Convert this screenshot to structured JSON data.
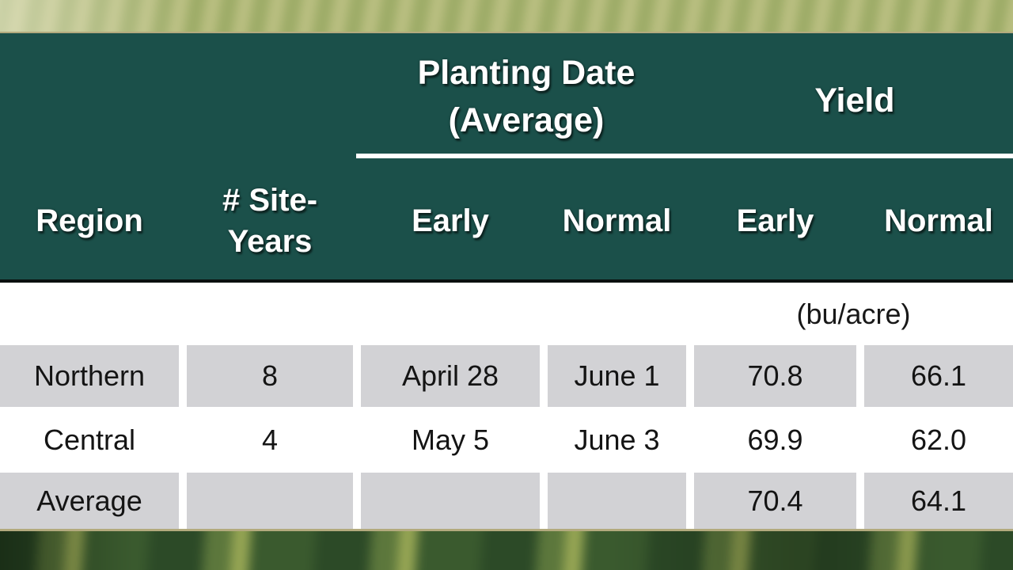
{
  "slide": {
    "group_headers": {
      "planting": {
        "line1": "Planting Date",
        "line2": "(Average)"
      },
      "yield": "Yield"
    },
    "columns": {
      "region": "Region",
      "site_years_line1": "# Site-",
      "site_years_line2": "Years",
      "planting_early": "Early",
      "planting_normal": "Normal",
      "yield_early": "Early",
      "yield_normal": "Normal"
    },
    "unit_label": "(bu/acre)",
    "rows": [
      {
        "cells": [
          "Northern",
          "8",
          "April 28",
          "June 1",
          "70.8",
          "66.1"
        ]
      },
      {
        "cells": [
          "Central",
          "4",
          "May 5",
          "June 3",
          "69.9",
          "62.0"
        ]
      },
      {
        "cells": [
          "Average",
          "",
          "",
          "",
          "70.4",
          "64.1"
        ]
      }
    ],
    "colors": {
      "header_green": "#1b504a",
      "header_bottom_line": "#0a100e",
      "row_shaded_gray": "#d2d2d5",
      "edge_tan": "#b3aa7e",
      "header_text": "#ffffff",
      "body_text": "#141414"
    }
  },
  "chart_data": {
    "type": "table",
    "column_groups": [
      {
        "label": "Planting Date (Average)",
        "columns": [
          "Early",
          "Normal"
        ]
      },
      {
        "label": "Yield",
        "unit": "bu/acre",
        "columns": [
          "Early",
          "Normal"
        ]
      }
    ],
    "columns": [
      "Region",
      "# Site-Years",
      "Planting Date (Average) Early",
      "Planting Date (Average) Normal",
      "Yield Early (bu/acre)",
      "Yield Normal (bu/acre)"
    ],
    "rows": [
      [
        "Northern",
        8,
        "April 28",
        "June 1",
        70.8,
        66.1
      ],
      [
        "Central",
        4,
        "May 5",
        "June 3",
        69.9,
        62.0
      ],
      [
        "Average",
        null,
        null,
        null,
        70.4,
        64.1
      ]
    ]
  }
}
